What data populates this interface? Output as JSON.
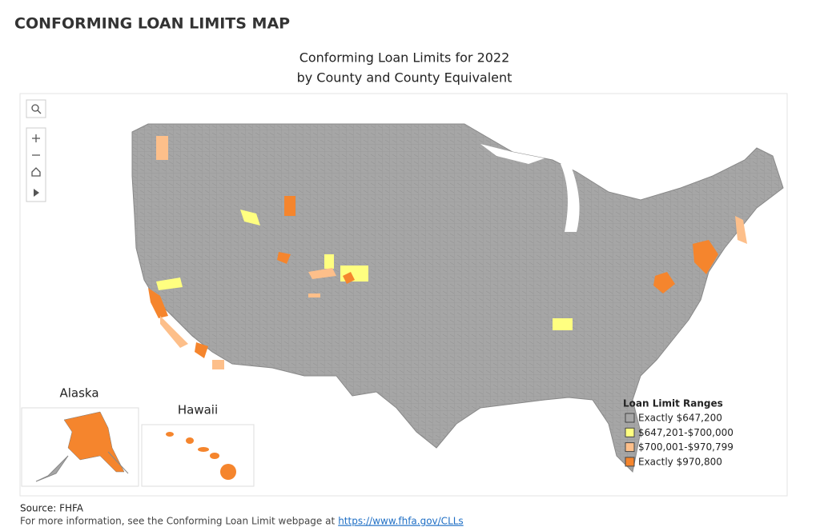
{
  "header": {
    "title": "CONFORMING LOAN LIMITS MAP"
  },
  "map": {
    "title_lines": [
      "Conforming Loan Limits for 2022",
      "by County and County Equivalent"
    ],
    "insets": [
      "Alaska",
      "Hawaii"
    ],
    "legend": {
      "title": "Loan Limit Ranges",
      "items": [
        {
          "label": "Exactly $647,200",
          "color": "#a6a6a6"
        },
        {
          "label": "$647,201-$700,000",
          "color": "#ffff80"
        },
        {
          "label": "$700,001-$970,799",
          "color": "#fdbf8a"
        },
        {
          "label": "Exactly $970,800",
          "color": "#f5852d"
        }
      ]
    }
  },
  "footer": {
    "source": "Source: FHFA",
    "info": "For more information, see the Conforming Loan Limit webpage at",
    "link": "https://www.fhfa.gov/CLLs"
  }
}
